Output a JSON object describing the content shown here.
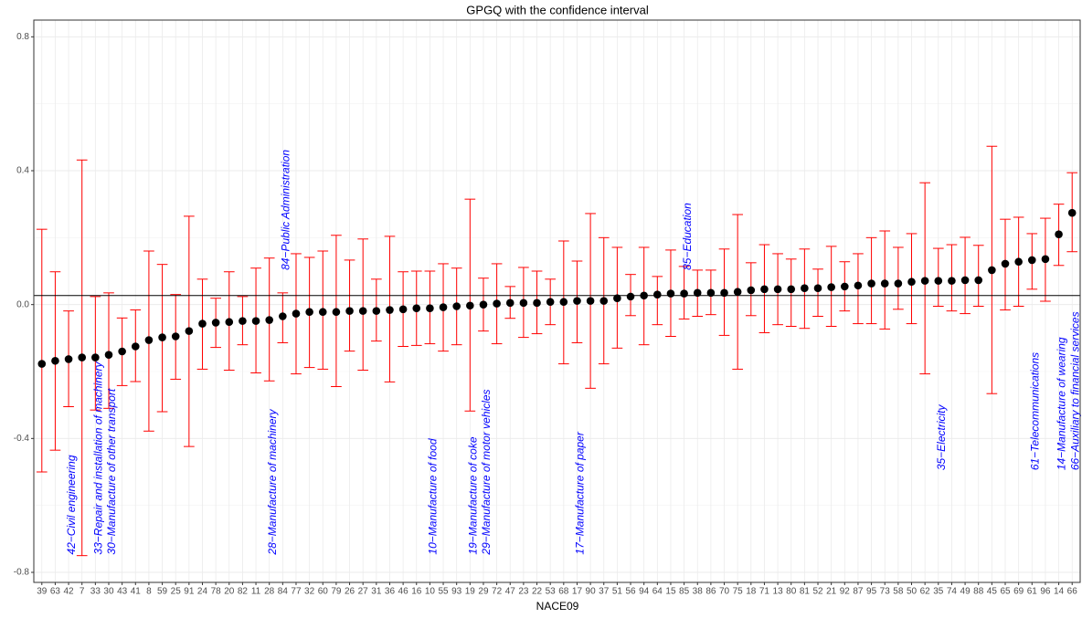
{
  "chart_data": {
    "type": "errorbar",
    "title": "GPGQ with the confidence interval",
    "x_label": "NACE09",
    "categories": [
      "39",
      "63",
      "42",
      "7",
      "33",
      "30",
      "43",
      "41",
      "8",
      "59",
      "25",
      "91",
      "24",
      "78",
      "20",
      "82",
      "11",
      "28",
      "84",
      "77",
      "32",
      "60",
      "79",
      "26",
      "27",
      "31",
      "36",
      "46",
      "16",
      "10",
      "55",
      "93",
      "19",
      "29",
      "72",
      "47",
      "23",
      "22",
      "53",
      "68",
      "17",
      "90",
      "37",
      "51",
      "56",
      "94",
      "64",
      "15",
      "85",
      "38",
      "86",
      "70",
      "75",
      "18",
      "71",
      "13",
      "80",
      "81",
      "52",
      "21",
      "92",
      "87",
      "95",
      "73",
      "58",
      "50",
      "62",
      "35",
      "74",
      "49",
      "88",
      "45",
      "65",
      "69",
      "61",
      "96",
      "14",
      "66"
    ],
    "values": [
      -0.177,
      -0.168,
      -0.163,
      -0.158,
      -0.158,
      -0.15,
      -0.14,
      -0.125,
      -0.106,
      -0.098,
      -0.095,
      -0.079,
      -0.057,
      -0.054,
      -0.052,
      -0.049,
      -0.049,
      -0.046,
      -0.035,
      -0.027,
      -0.022,
      -0.022,
      -0.022,
      -0.019,
      -0.019,
      -0.019,
      -0.016,
      -0.014,
      -0.011,
      -0.011,
      -0.008,
      -0.005,
      -0.003,
      0,
      0.003,
      0.005,
      0.005,
      0.005,
      0.008,
      0.008,
      0.011,
      0.011,
      0.011,
      0.019,
      0.024,
      0.027,
      0.03,
      0.033,
      0.033,
      0.035,
      0.035,
      0.035,
      0.038,
      0.043,
      0.046,
      0.046,
      0.046,
      0.049,
      0.049,
      0.052,
      0.054,
      0.057,
      0.063,
      0.063,
      0.063,
      0.068,
      0.071,
      0.071,
      0.071,
      0.073,
      0.073,
      0.103,
      0.122,
      0.128,
      0.133,
      0.136,
      0.21,
      0.274
    ],
    "lower": [
      -0.5,
      -0.435,
      -0.305,
      -0.75,
      -0.315,
      -0.31,
      -0.242,
      -0.23,
      -0.378,
      -0.32,
      -0.223,
      -0.424,
      -0.193,
      -0.128,
      -0.196,
      -0.12,
      -0.204,
      -0.228,
      -0.114,
      -0.207,
      -0.188,
      -0.193,
      -0.245,
      -0.139,
      -0.196,
      -0.109,
      -0.231,
      -0.125,
      -0.122,
      -0.117,
      -0.139,
      -0.12,
      -0.318,
      -0.079,
      -0.117,
      -0.041,
      -0.098,
      -0.087,
      -0.06,
      -0.177,
      -0.114,
      -0.25,
      -0.177,
      -0.13,
      -0.033,
      -0.12,
      -0.06,
      -0.095,
      -0.043,
      -0.035,
      -0.03,
      -0.092,
      -0.193,
      -0.033,
      -0.084,
      -0.06,
      -0.065,
      -0.071,
      -0.035,
      -0.065,
      -0.019,
      -0.057,
      -0.057,
      -0.073,
      -0.014,
      -0.057,
      -0.207,
      -0.005,
      -0.019,
      -0.027,
      -0.005,
      -0.266,
      -0.016,
      -0.005,
      0.046,
      0.01,
      0.117,
      0.158
    ],
    "upper": [
      0.225,
      0.098,
      -0.019,
      0.432,
      0.024,
      0.035,
      -0.04,
      -0.016,
      0.16,
      0.12,
      0.03,
      0.264,
      0.076,
      0.019,
      0.098,
      0.024,
      0.109,
      0.139,
      0.035,
      0.152,
      0.141,
      0.16,
      0.207,
      0.133,
      0.196,
      0.076,
      0.204,
      0.098,
      0.1,
      0.1,
      0.122,
      0.109,
      0.315,
      0.079,
      0.122,
      0.054,
      0.111,
      0.1,
      0.076,
      0.19,
      0.13,
      0.272,
      0.2,
      0.171,
      0.09,
      0.171,
      0.084,
      0.163,
      0.114,
      0.103,
      0.103,
      0.166,
      0.269,
      0.125,
      0.179,
      0.152,
      0.136,
      0.166,
      0.106,
      0.174,
      0.128,
      0.152,
      0.2,
      0.22,
      0.171,
      0.212,
      0.364,
      0.168,
      0.179,
      0.201,
      0.177,
      0.473,
      0.255,
      0.261,
      0.212,
      0.258,
      0.3,
      0.394
    ],
    "point_color": "#000000",
    "bar_color": "#ff0000",
    "reference_line": 0.027,
    "ylim": [
      -0.83,
      0.85
    ],
    "yticks": [
      {
        "value": -0.8,
        "label": "-0.8"
      },
      {
        "value": -0.4,
        "label": "-0.4"
      },
      {
        "value": 0,
        "label": "0.0"
      },
      0.4,
      0.8
    ],
    "grid": true,
    "annotation_color": "#0000ff",
    "annotations": [
      {
        "text": "42−Civil engineering",
        "category": "42",
        "y": -0.747
      },
      {
        "text": "33−Repair and installation of machinery",
        "category": "33",
        "y": -0.747
      },
      {
        "text": "30−Manufacture of other transport",
        "category": "30",
        "y": -0.747
      },
      {
        "text": "28−Manufacture of machinery",
        "category": "28",
        "y": -0.747
      },
      {
        "text": "84−Public Administration",
        "category": "84",
        "y": 0.103
      },
      {
        "text": "10−Manufacture of food",
        "category": "10",
        "y": -0.747
      },
      {
        "text": "19−Manufacture of coke",
        "category": "19",
        "y": -0.747
      },
      {
        "text": "29−Manufacture of motor vehicles",
        "category": "29",
        "y": -0.747
      },
      {
        "text": "17−Manufacture of paper",
        "category": "17",
        "y": -0.747
      },
      {
        "text": "85−Education",
        "category": "85",
        "y": 0.103
      },
      {
        "text": "35−Electricity",
        "category": "35",
        "y": -0.495
      },
      {
        "text": "61−Telecommunications",
        "category": "61",
        "y": -0.495
      },
      {
        "text": "14−Manufacture of wearing",
        "category": "14",
        "y": -0.495
      },
      {
        "text": "66−Auxiliary to financial services",
        "category": "66",
        "y": -0.495
      }
    ]
  }
}
